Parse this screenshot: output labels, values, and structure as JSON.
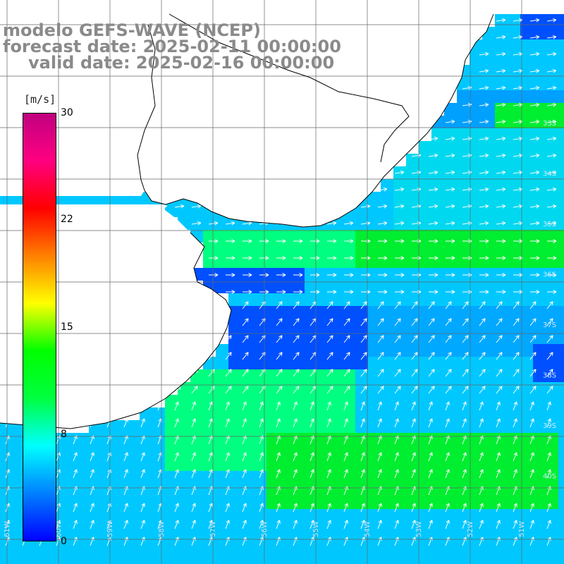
{
  "title": {
    "line1": "modelo GEFS-WAVE (NCEP)",
    "line2": "forecast date: 2025-02-11 00:00:00",
    "line3": "valid date: 2025-02-16 00:00:00"
  },
  "colorbar": {
    "unit": "[m/s]",
    "ticks": [
      "30",
      "22",
      "15",
      "8",
      "0"
    ],
    "tick_values": [
      30,
      22,
      15,
      8,
      0
    ],
    "colors": [
      "#0000ff",
      "#0080ff",
      "#00ffff",
      "#00ff40",
      "#00ff00",
      "#ffff00",
      "#ff8000",
      "#ff0000",
      "#ff0080",
      "#c00080"
    ]
  },
  "map": {
    "lat_labels": [
      "33S",
      "34S",
      "35S",
      "36S",
      "37S",
      "38S",
      "39S",
      "40S"
    ],
    "lon_labels": [
      "61W",
      "60W",
      "59W",
      "58W",
      "57W",
      "56W",
      "55W",
      "54W",
      "53W",
      "52W",
      "51W"
    ],
    "ocean_colors": {
      "calm": "#00c8ff",
      "moderate": "#00ff80",
      "strong": "#00ee30",
      "weak": "#0050ff"
    },
    "arrow_color": "#ffffff",
    "land_color": "#ffffff",
    "coast_color": "#000000",
    "grid_color": "#666666"
  }
}
